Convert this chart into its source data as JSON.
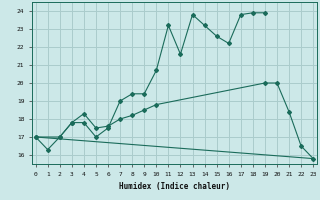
{
  "title": "",
  "xlabel": "Humidex (Indice chaleur)",
  "bg_color": "#cce8e8",
  "grid_color": "#aacccc",
  "line_color": "#1a6b5a",
  "series1": {
    "x": [
      0,
      1,
      2,
      3,
      4,
      5,
      6,
      7,
      8,
      9,
      10,
      11,
      12,
      13,
      14,
      15,
      16,
      17,
      18,
      19
    ],
    "y": [
      17.0,
      16.3,
      17.0,
      17.8,
      17.8,
      17.0,
      17.5,
      19.0,
      19.4,
      19.4,
      20.7,
      23.2,
      21.6,
      23.8,
      23.2,
      22.6,
      22.2,
      23.8,
      23.9,
      23.9
    ]
  },
  "series2": {
    "x": [
      0,
      2,
      3,
      4,
      5,
      6,
      7,
      8,
      9,
      10,
      19,
      20,
      21,
      22,
      23
    ],
    "y": [
      17.0,
      17.0,
      17.8,
      18.3,
      17.5,
      17.6,
      18.0,
      18.2,
      18.5,
      18.8,
      20.0,
      20.0,
      18.4,
      16.5,
      15.8
    ]
  },
  "series3": {
    "x": [
      0,
      23
    ],
    "y": [
      17.0,
      15.8
    ]
  },
  "xlim": [
    -0.3,
    23.3
  ],
  "ylim": [
    15.5,
    24.5
  ],
  "yticks": [
    16,
    17,
    18,
    19,
    20,
    21,
    22,
    23,
    24
  ],
  "xticks": [
    0,
    1,
    2,
    3,
    4,
    5,
    6,
    7,
    8,
    9,
    10,
    11,
    12,
    13,
    14,
    15,
    16,
    17,
    18,
    19,
    20,
    21,
    22,
    23
  ]
}
